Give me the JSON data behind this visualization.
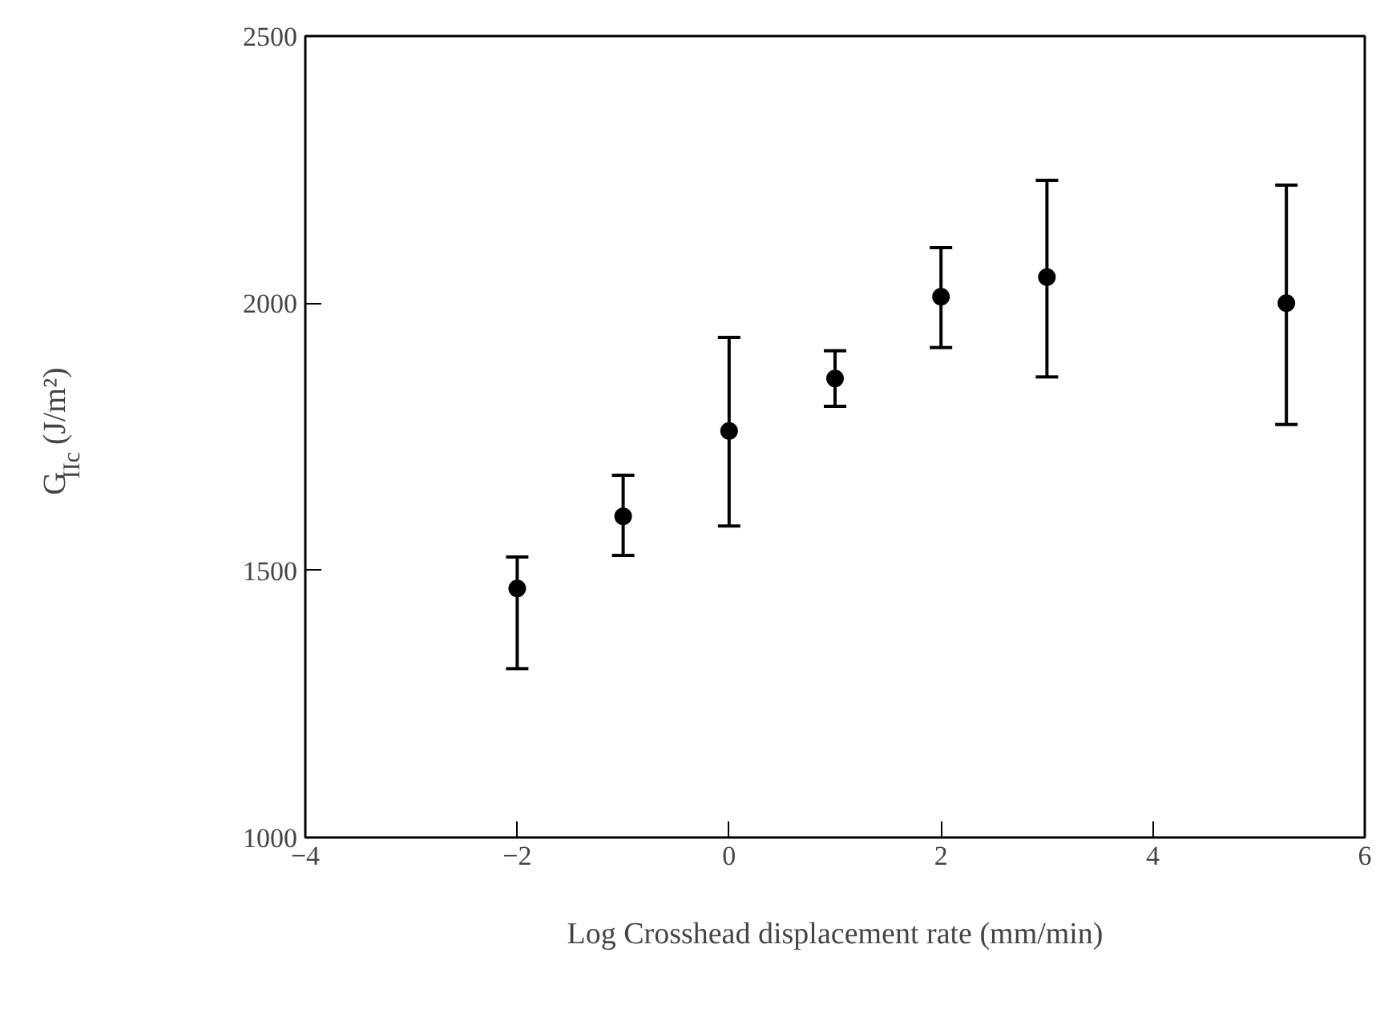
{
  "chart_data": {
    "type": "scatter",
    "xlabel": "Log Crosshead displacement rate (mm/min)",
    "ylabel": "G$_{IIc}$ (J/m²)",
    "x": [
      -2,
      -1,
      0,
      1,
      2,
      3,
      5.26
    ],
    "values": [
      1466,
      1601,
      1761,
      1859,
      2012,
      2049,
      2000
    ],
    "errors": [
      [
        1316,
        1525
      ],
      [
        1528,
        1678
      ],
      [
        1583,
        1936
      ],
      [
        1807,
        1911
      ],
      [
        1917,
        2104
      ],
      [
        1862,
        2230
      ],
      [
        1773,
        2221
      ]
    ],
    "color": "#000000",
    "marker": "circle",
    "xlim": [
      -4,
      6
    ],
    "xticks": [
      -4,
      -2,
      0,
      2,
      4,
      6
    ],
    "ylim": [
      1000,
      2500
    ],
    "yticks": [
      1000,
      1500,
      2000,
      2500
    ],
    "grid": false
  }
}
